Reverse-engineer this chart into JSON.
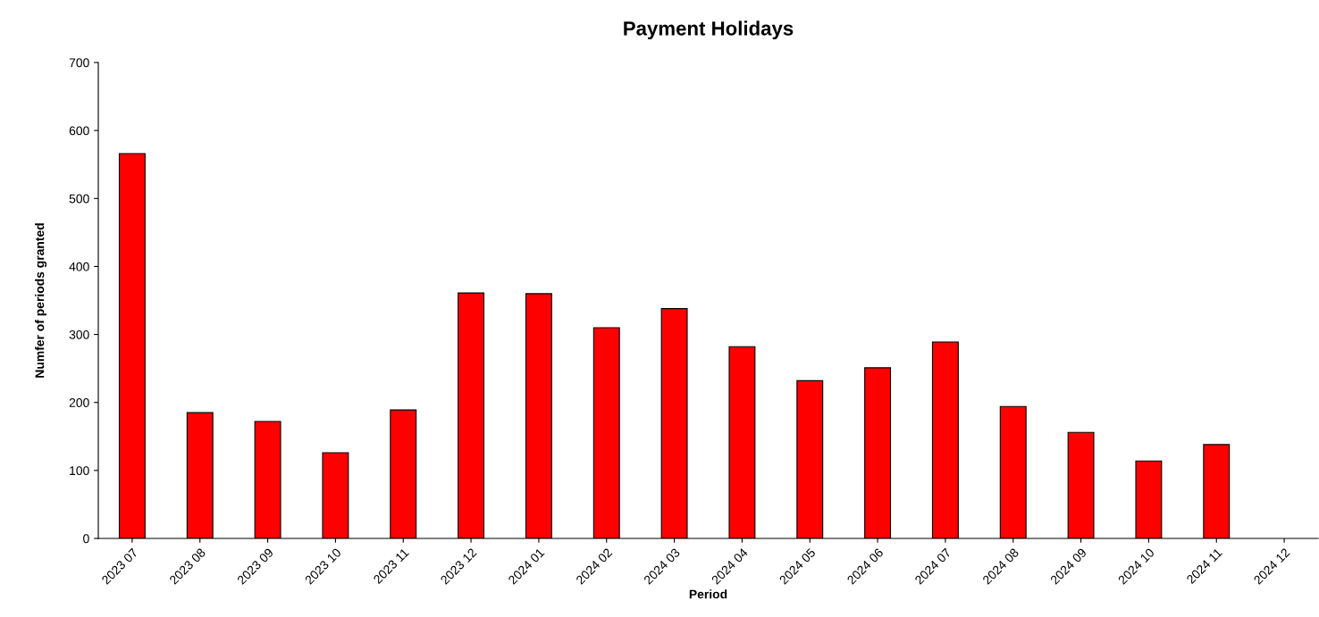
{
  "chart_data": {
    "type": "bar",
    "title": "Payment Holidays",
    "xlabel": "Period",
    "ylabel": "Numfer of periods granted",
    "categories": [
      "2023 07",
      "2023 08",
      "2023 09",
      "2023 10",
      "2023 11",
      "2023 12",
      "2024 01",
      "2024 02",
      "2024 03",
      "2024 04",
      "2024 05",
      "2024 06",
      "2024 07",
      "2024 08",
      "2024 09",
      "2024 10",
      "2024 11",
      "2024 12"
    ],
    "values": [
      566,
      185,
      172,
      126,
      189,
      361,
      360,
      310,
      338,
      282,
      232,
      251,
      289,
      194,
      156,
      114,
      138,
      null
    ],
    "color": "#ff0000",
    "ylim": [
      0,
      700
    ],
    "yticks": [
      0,
      100,
      200,
      300,
      400,
      500,
      600,
      700
    ],
    "grid": false,
    "legend": false
  }
}
